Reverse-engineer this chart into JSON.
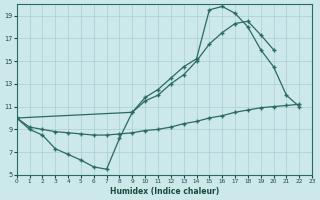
{
  "xlabel": "Humidex (Indice chaleur)",
  "xlim": [
    0,
    23
  ],
  "ylim": [
    5,
    20
  ],
  "xticks": [
    0,
    1,
    2,
    3,
    4,
    5,
    6,
    7,
    8,
    9,
    10,
    11,
    12,
    13,
    14,
    15,
    16,
    17,
    18,
    19,
    20,
    21,
    22,
    23
  ],
  "yticks": [
    5,
    7,
    9,
    11,
    13,
    15,
    17,
    19
  ],
  "bg_color": "#cce8ea",
  "grid_color": "#aacfd2",
  "line_color": "#2a6b60",
  "series1_x": [
    0,
    1,
    2,
    3,
    4,
    5,
    6,
    7,
    8,
    9,
    10,
    11,
    12,
    13,
    14,
    15,
    16,
    17,
    18,
    19,
    20,
    21,
    22
  ],
  "series1_y": [
    10,
    9,
    8.5,
    7.3,
    6.8,
    6.3,
    5.7,
    5.5,
    8.2,
    10.5,
    11.8,
    12.5,
    13.5,
    14.5,
    15.2,
    19.5,
    19.8,
    19.2,
    18.0,
    16.0,
    14.5,
    12.0,
    11.0
  ],
  "series2_x": [
    0,
    9,
    10,
    11,
    12,
    13,
    14,
    15,
    16,
    17,
    18,
    19,
    20
  ],
  "series2_y": [
    10,
    10.5,
    11.5,
    12.0,
    13.0,
    13.8,
    15.0,
    16.5,
    17.5,
    18.3,
    18.5,
    17.3,
    16.0
  ],
  "series3_x": [
    0,
    1,
    2,
    3,
    4,
    5,
    6,
    7,
    8,
    9,
    10,
    11,
    12,
    13,
    14,
    15,
    16,
    17,
    18,
    19,
    20,
    21,
    22
  ],
  "series3_y": [
    10,
    9.2,
    9.0,
    8.8,
    8.7,
    8.6,
    8.5,
    8.5,
    8.6,
    8.7,
    8.9,
    9.0,
    9.2,
    9.5,
    9.7,
    10.0,
    10.2,
    10.5,
    10.7,
    10.9,
    11.0,
    11.1,
    11.2
  ]
}
